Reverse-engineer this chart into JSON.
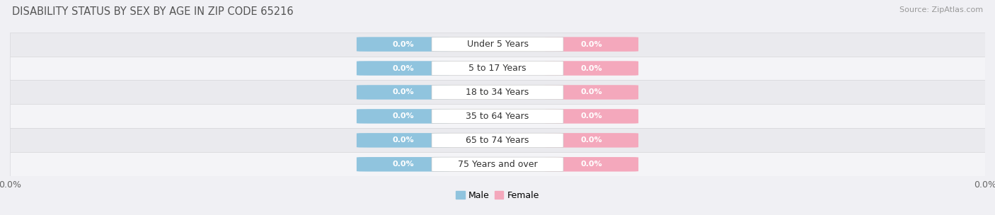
{
  "title": "DISABILITY STATUS BY SEX BY AGE IN ZIP CODE 65216",
  "source": "Source: ZipAtlas.com",
  "categories": [
    "Under 5 Years",
    "5 to 17 Years",
    "18 to 34 Years",
    "35 to 64 Years",
    "65 to 74 Years",
    "75 Years and over"
  ],
  "male_values": [
    0.0,
    0.0,
    0.0,
    0.0,
    0.0,
    0.0
  ],
  "female_values": [
    0.0,
    0.0,
    0.0,
    0.0,
    0.0,
    0.0
  ],
  "male_color": "#90C4DE",
  "female_color": "#F4A8BC",
  "male_label": "Male",
  "female_label": "Female",
  "row_colors": [
    "#EAEAEE",
    "#F4F4F7"
  ],
  "title_color": "#555555",
  "title_fontsize": 10.5,
  "source_fontsize": 8,
  "value_fontsize": 8,
  "label_fontsize": 9,
  "axis_label": "0.0%",
  "bg_color": "#F0F0F4",
  "row_line_color": "#D8D8DC"
}
